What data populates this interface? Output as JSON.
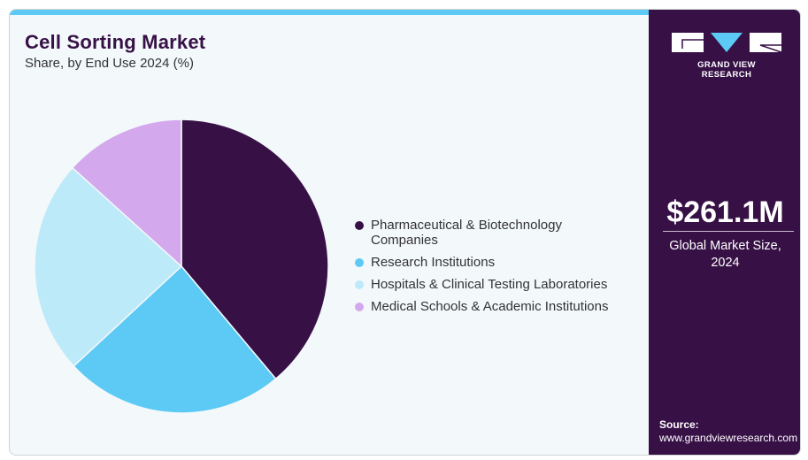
{
  "header": {
    "title": "Cell Sorting Market",
    "subtitle": "Share, by End Use 2024 (%)"
  },
  "brand": {
    "name": "GRAND VIEW RESEARCH"
  },
  "market": {
    "value": "$261.1M",
    "label_line1": "Global Market Size,",
    "label_line2": "2024"
  },
  "source": {
    "label": "Source:",
    "url": "www.grandviewresearch.com"
  },
  "colors": {
    "accent": "#5ccaf5",
    "brand": "#371146"
  },
  "chart_data": {
    "type": "pie",
    "title": "Cell Sorting Market",
    "subtitle": "Share, by End Use 2024 (%)",
    "legend_position": "right",
    "categories": [
      "Pharmaceutical & Biotechnology Companies",
      "Research Institutions",
      "Hospitals & Clinical Testing Laboratories",
      "Medical Schools & Academic Institutions"
    ],
    "legend_labels": [
      [
        "Pharmaceutical & Biotechnology",
        "Companies"
      ],
      [
        "Research Institutions"
      ],
      [
        "Hospitals & Clinical Testing Laboratories"
      ],
      [
        "Medical Schools & Academic Institutions"
      ]
    ],
    "values": [
      38.9,
      24.2,
      23.6,
      13.3
    ],
    "colors": [
      "#371146",
      "#5ccaf5",
      "#bdeaf9",
      "#d4a8ec"
    ]
  }
}
